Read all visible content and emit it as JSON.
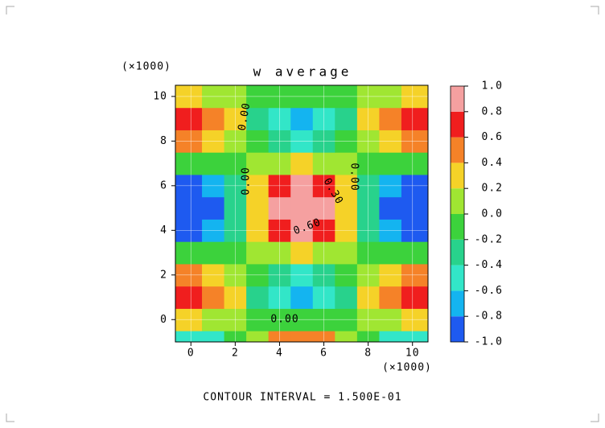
{
  "chart_data": {
    "type": "contour",
    "title": "w average",
    "xlabel": "(×1000)",
    "ylabel": "(×1000)",
    "footer": "CONTOUR INTERVAL = 1.500E-01",
    "x": [
      0,
      1,
      2,
      3,
      4,
      5,
      6,
      7,
      8,
      9,
      10
    ],
    "y": [
      -1,
      0,
      1,
      2,
      3,
      4,
      5,
      6,
      7,
      8,
      9,
      10
    ],
    "z": [
      [
        -0.5,
        -0.41,
        -0.16,
        0.16,
        0.41,
        0.5,
        0.41,
        0.16,
        -0.16,
        -0.41,
        -0.5
      ],
      [
        0.2,
        0.16,
        0.06,
        -0.06,
        -0.16,
        -0.2,
        -0.16,
        -0.06,
        0.06,
        0.16,
        0.2
      ],
      [
        0.7,
        0.57,
        0.22,
        -0.22,
        -0.57,
        -0.7,
        -0.57,
        -0.22,
        0.22,
        0.57,
        0.7
      ],
      [
        0.45,
        0.36,
        0.14,
        -0.14,
        -0.36,
        -0.45,
        -0.36,
        -0.14,
        0.14,
        0.36,
        0.45
      ],
      [
        -0.2,
        -0.16,
        -0.06,
        0.06,
        0.16,
        0.2,
        0.16,
        0.06,
        -0.06,
        -0.16,
        -0.2
      ],
      [
        -0.85,
        -0.69,
        -0.26,
        0.26,
        0.69,
        0.85,
        0.69,
        0.26,
        -0.26,
        -0.69,
        -0.85
      ],
      [
        -1,
        -0.81,
        -0.31,
        0.31,
        0.81,
        1,
        0.81,
        0.31,
        -0.31,
        -0.81,
        -1
      ],
      [
        -0.85,
        -0.69,
        -0.26,
        0.26,
        0.69,
        0.85,
        0.69,
        0.26,
        -0.26,
        -0.69,
        -0.85
      ],
      [
        -0.2,
        -0.16,
        -0.06,
        0.06,
        0.16,
        0.2,
        0.16,
        0.06,
        -0.06,
        -0.16,
        -0.2
      ],
      [
        0.45,
        0.36,
        0.14,
        -0.14,
        -0.36,
        -0.45,
        -0.36,
        -0.14,
        0.14,
        0.36,
        0.45
      ],
      [
        0.7,
        0.57,
        0.22,
        -0.22,
        -0.57,
        -0.7,
        -0.57,
        -0.22,
        0.22,
        0.57,
        0.7
      ],
      [
        0.2,
        0.16,
        0.06,
        -0.06,
        -0.16,
        -0.2,
        -0.16,
        -0.06,
        0.06,
        0.16,
        0.2
      ]
    ],
    "xlim": [
      -0.7,
      10.7
    ],
    "ylim": [
      -1,
      10.5
    ],
    "xticks": [
      0,
      2,
      4,
      6,
      8,
      10
    ],
    "yticks": [
      0,
      2,
      4,
      6,
      8,
      10
    ],
    "grid": true,
    "colorbar": {
      "levels": [
        {
          "value": -1,
          "label": "-1.0"
        },
        {
          "value": -0.8,
          "label": "-0.8"
        },
        {
          "value": -0.6,
          "label": "-0.6"
        },
        {
          "value": -0.4,
          "label": "-0.4"
        },
        {
          "value": -0.2,
          "label": "-0.2"
        },
        {
          "value": 0,
          "label": "0.0"
        },
        {
          "value": 0.2,
          "label": "0.2"
        },
        {
          "value": 0.4,
          "label": "0.4"
        },
        {
          "value": 0.6,
          "label": "0.6"
        },
        {
          "value": 0.8,
          "label": "0.8"
        },
        {
          "value": 1,
          "label": "1.0"
        }
      ],
      "colors": [
        "#1e5af0",
        "#14b4f0",
        "#32e6c8",
        "#28d28c",
        "#3cd23c",
        "#a0e632",
        "#f5d228",
        "#f58228",
        "#f01e1e",
        "#f5a0a0"
      ]
    },
    "annotations": [
      "0.00",
      "0.00",
      "0.00",
      "0.30",
      "0.60",
      "0.00"
    ]
  }
}
